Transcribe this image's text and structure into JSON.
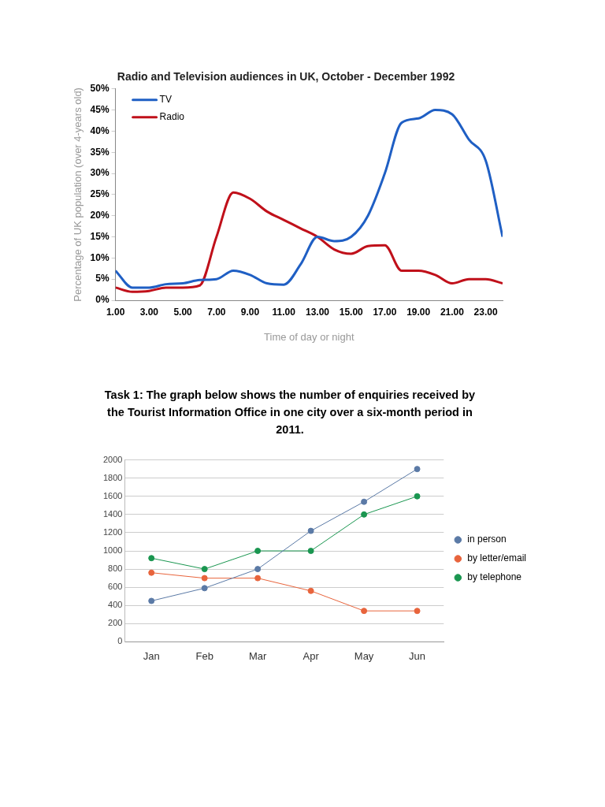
{
  "chart_data": [
    {
      "type": "line",
      "title": "Radio and Television audiences in UK, October - December 1992",
      "xlabel": "Time of day or night",
      "ylabel": "Percentage of UK population (over 4-years old)",
      "xlim": [
        1,
        24
      ],
      "xticks": [
        {
          "value": 1,
          "label": "1.00"
        },
        {
          "value": 3,
          "label": "3.00"
        },
        {
          "value": 5,
          "label": "5.00"
        },
        {
          "value": 7,
          "label": "7.00"
        },
        {
          "value": 9,
          "label": "9.00"
        },
        {
          "value": 11,
          "label": "11.00"
        },
        {
          "value": 13,
          "label": "13.00"
        },
        {
          "value": 15,
          "label": "15.00"
        },
        {
          "value": 17,
          "label": "17.00"
        },
        {
          "value": 19,
          "label": "19.00"
        },
        {
          "value": 21,
          "label": "21.00"
        },
        {
          "value": 23,
          "label": "23.00"
        }
      ],
      "ylim": [
        0,
        50
      ],
      "yticks": [
        {
          "value": 0,
          "label": "0%"
        },
        {
          "value": 5,
          "label": "5%"
        },
        {
          "value": 10,
          "label": "10%"
        },
        {
          "value": 15,
          "label": "15%"
        },
        {
          "value": 20,
          "label": "20%"
        },
        {
          "value": 25,
          "label": "25%"
        },
        {
          "value": 30,
          "label": "30%"
        },
        {
          "value": 35,
          "label": "35%"
        },
        {
          "value": 40,
          "label": "40%"
        },
        {
          "value": 45,
          "label": "45%"
        },
        {
          "value": 50,
          "label": "50%"
        }
      ],
      "x": [
        1,
        2,
        3,
        4,
        5,
        6,
        7,
        8,
        9,
        10,
        11,
        12,
        13,
        14,
        15,
        16,
        17,
        18,
        19,
        20,
        21,
        22,
        23,
        24
      ],
      "series": [
        {
          "name": "TV",
          "color": "#1f5fc4",
          "values": [
            7,
            3,
            3,
            3.8,
            4,
            4.8,
            5,
            7,
            6,
            4,
            3.7,
            8.5,
            15,
            14,
            15,
            20,
            30,
            42,
            43,
            45,
            44,
            38,
            33,
            15
          ]
        },
        {
          "name": "Radio",
          "color": "#c0101a",
          "values": [
            3,
            2,
            2.2,
            3,
            3,
            3.5,
            15,
            25.5,
            24,
            21,
            19,
            17,
            15,
            12,
            11,
            12.8,
            13,
            7,
            7,
            6,
            4,
            5,
            5,
            4
          ]
        }
      ],
      "grid": false,
      "legend": "top left",
      "marker": "none",
      "line_style": "solid"
    },
    {
      "type": "line",
      "title": "Task 1: The graph below shows the number of enquiries received by the Tourist Information Office in one city over a six-month period in 2011.",
      "categories": [
        "Jan",
        "Feb",
        "Mar",
        "Apr",
        "May",
        "Jun"
      ],
      "ylim": [
        0,
        2000
      ],
      "yticks": [
        0,
        200,
        400,
        600,
        800,
        1000,
        1200,
        1400,
        1600,
        1800,
        2000
      ],
      "series": [
        {
          "name": "in person",
          "color": "#5b7aa6",
          "values": [
            450,
            590,
            800,
            1220,
            1540,
            1900
          ]
        },
        {
          "name": "by letter/email",
          "color": "#e8643c",
          "values": [
            760,
            700,
            700,
            560,
            340,
            340
          ]
        },
        {
          "name": "by telephone",
          "color": "#1a9650",
          "values": [
            920,
            800,
            1000,
            1000,
            1400,
            1600
          ]
        }
      ],
      "grid": "y",
      "legend": "right",
      "marker": "circle",
      "line_style": "solid"
    }
  ]
}
